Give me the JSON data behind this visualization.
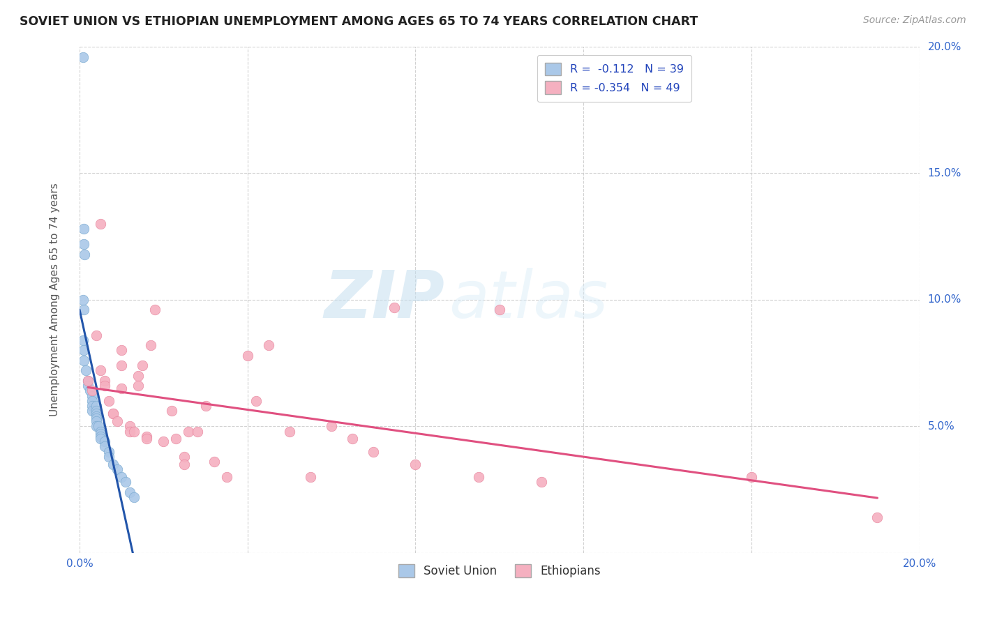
{
  "title": "SOVIET UNION VS ETHIOPIAN UNEMPLOYMENT AMONG AGES 65 TO 74 YEARS CORRELATION CHART",
  "source": "Source: ZipAtlas.com",
  "ylabel": "Unemployment Among Ages 65 to 74 years",
  "xlim": [
    0.0,
    0.2
  ],
  "ylim": [
    0.0,
    0.2
  ],
  "xticks": [
    0.0,
    0.04,
    0.08,
    0.12,
    0.16,
    0.2
  ],
  "yticks": [
    0.0,
    0.05,
    0.1,
    0.15,
    0.2
  ],
  "ytick_labels_right": [
    "",
    "5.0%",
    "10.0%",
    "15.0%",
    "20.0%"
  ],
  "xtick_labels": [
    "0.0%",
    "",
    "",
    "",
    "",
    "20.0%"
  ],
  "background_color": "#ffffff",
  "grid_color": "#cccccc",
  "watermark_zip": "ZIP",
  "watermark_atlas": "atlas",
  "soviet_color": "#aac8e8",
  "soviet_edge_color": "#7aaad0",
  "soviet_line_color": "#2255aa",
  "ethiopian_color": "#f5b0c0",
  "ethiopian_edge_color": "#e888a0",
  "ethiopian_line_color": "#e05080",
  "soviet_points": [
    [
      0.0008,
      0.196
    ],
    [
      0.001,
      0.128
    ],
    [
      0.001,
      0.122
    ],
    [
      0.0012,
      0.118
    ],
    [
      0.0008,
      0.1
    ],
    [
      0.001,
      0.096
    ],
    [
      0.0009,
      0.084
    ],
    [
      0.001,
      0.08
    ],
    [
      0.001,
      0.076
    ],
    [
      0.0015,
      0.072
    ],
    [
      0.002,
      0.068
    ],
    [
      0.002,
      0.066
    ],
    [
      0.0025,
      0.064
    ],
    [
      0.003,
      0.062
    ],
    [
      0.003,
      0.06
    ],
    [
      0.003,
      0.058
    ],
    [
      0.003,
      0.056
    ],
    [
      0.004,
      0.058
    ],
    [
      0.004,
      0.056
    ],
    [
      0.004,
      0.055
    ],
    [
      0.004,
      0.054
    ],
    [
      0.004,
      0.053
    ],
    [
      0.004,
      0.052
    ],
    [
      0.004,
      0.05
    ],
    [
      0.0045,
      0.05
    ],
    [
      0.005,
      0.048
    ],
    [
      0.005,
      0.047
    ],
    [
      0.005,
      0.046
    ],
    [
      0.005,
      0.045
    ],
    [
      0.006,
      0.044
    ],
    [
      0.006,
      0.042
    ],
    [
      0.007,
      0.04
    ],
    [
      0.007,
      0.038
    ],
    [
      0.008,
      0.035
    ],
    [
      0.009,
      0.033
    ],
    [
      0.01,
      0.03
    ],
    [
      0.011,
      0.028
    ],
    [
      0.012,
      0.024
    ],
    [
      0.013,
      0.022
    ]
  ],
  "ethiopian_points": [
    [
      0.002,
      0.068
    ],
    [
      0.003,
      0.064
    ],
    [
      0.004,
      0.086
    ],
    [
      0.005,
      0.072
    ],
    [
      0.005,
      0.13
    ],
    [
      0.006,
      0.068
    ],
    [
      0.006,
      0.066
    ],
    [
      0.007,
      0.06
    ],
    [
      0.008,
      0.055
    ],
    [
      0.008,
      0.055
    ],
    [
      0.009,
      0.052
    ],
    [
      0.01,
      0.08
    ],
    [
      0.01,
      0.074
    ],
    [
      0.01,
      0.065
    ],
    [
      0.012,
      0.05
    ],
    [
      0.012,
      0.048
    ],
    [
      0.013,
      0.048
    ],
    [
      0.014,
      0.07
    ],
    [
      0.014,
      0.066
    ],
    [
      0.015,
      0.074
    ],
    [
      0.016,
      0.046
    ],
    [
      0.016,
      0.045
    ],
    [
      0.017,
      0.082
    ],
    [
      0.018,
      0.096
    ],
    [
      0.02,
      0.044
    ],
    [
      0.022,
      0.056
    ],
    [
      0.023,
      0.045
    ],
    [
      0.025,
      0.038
    ],
    [
      0.025,
      0.035
    ],
    [
      0.026,
      0.048
    ],
    [
      0.028,
      0.048
    ],
    [
      0.03,
      0.058
    ],
    [
      0.032,
      0.036
    ],
    [
      0.035,
      0.03
    ],
    [
      0.04,
      0.078
    ],
    [
      0.042,
      0.06
    ],
    [
      0.045,
      0.082
    ],
    [
      0.05,
      0.048
    ],
    [
      0.055,
      0.03
    ],
    [
      0.06,
      0.05
    ],
    [
      0.065,
      0.045
    ],
    [
      0.07,
      0.04
    ],
    [
      0.075,
      0.097
    ],
    [
      0.08,
      0.035
    ],
    [
      0.095,
      0.03
    ],
    [
      0.1,
      0.096
    ],
    [
      0.11,
      0.028
    ],
    [
      0.16,
      0.03
    ],
    [
      0.19,
      0.014
    ]
  ],
  "legend_label1": "R =  -0.112   N = 39",
  "legend_label2": "R = -0.354   N = 49",
  "bottom_legend1": "Soviet Union",
  "bottom_legend2": "Ethiopians"
}
